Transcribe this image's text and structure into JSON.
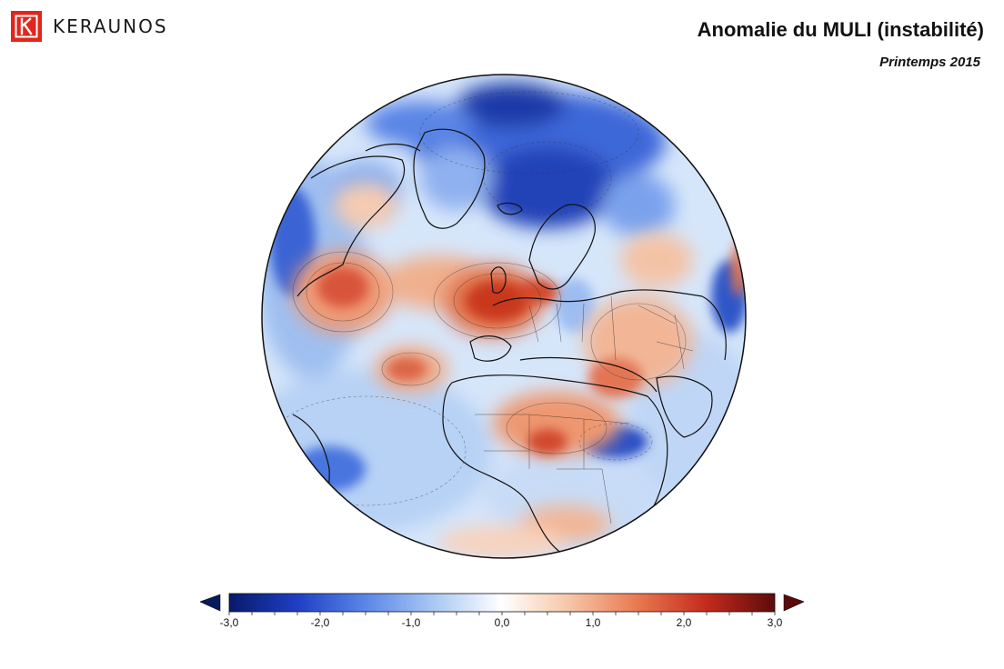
{
  "brand": {
    "name": "KERAUNOS",
    "logo_icon": "keraunos-k-logo-icon",
    "logo_color": "#e1261c"
  },
  "title": "Anomalie du MULI (instabilité)",
  "subtitle": "Printemps 2015",
  "map": {
    "projection": "orthographic",
    "region": "Atlantique Nord / Europe / Afrique"
  },
  "colorbar": {
    "min": -3.0,
    "max": 3.0,
    "ticks": [
      "-3,0",
      "-2,0",
      "-1,0",
      "0,0",
      "1,0",
      "2,0",
      "3,0"
    ],
    "tick_values": [
      -3,
      -2,
      -1,
      0,
      1,
      2,
      3
    ],
    "colors": [
      "#08196b",
      "#1f3fc4",
      "#5b86e8",
      "#a9c8f3",
      "#ffffff",
      "#f6c5a6",
      "#e8784f",
      "#c42a1c",
      "#5e0b0b"
    ],
    "extend_left_color": "#061a5c",
    "extend_right_color": "#5a0a0a"
  }
}
